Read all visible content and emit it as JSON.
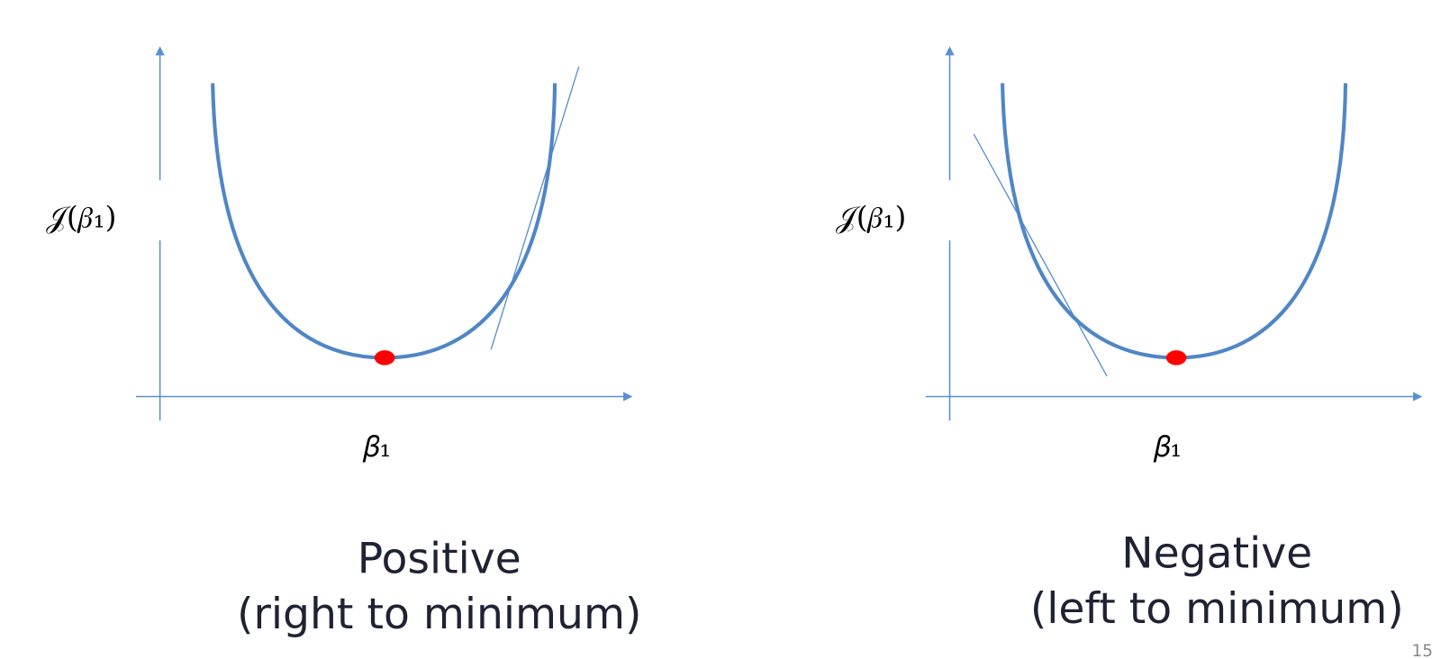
{
  "panels": [
    {
      "y_label": "𝒥(𝛽₁)",
      "x_label": "𝛽₁",
      "caption": [
        "Positive",
        "(right to minimum)"
      ]
    },
    {
      "y_label": "𝒥(𝛽₁)",
      "x_label": "𝛽₁",
      "caption": [
        "Negative",
        "(left to minimum)"
      ]
    }
  ],
  "page_number": "15"
}
